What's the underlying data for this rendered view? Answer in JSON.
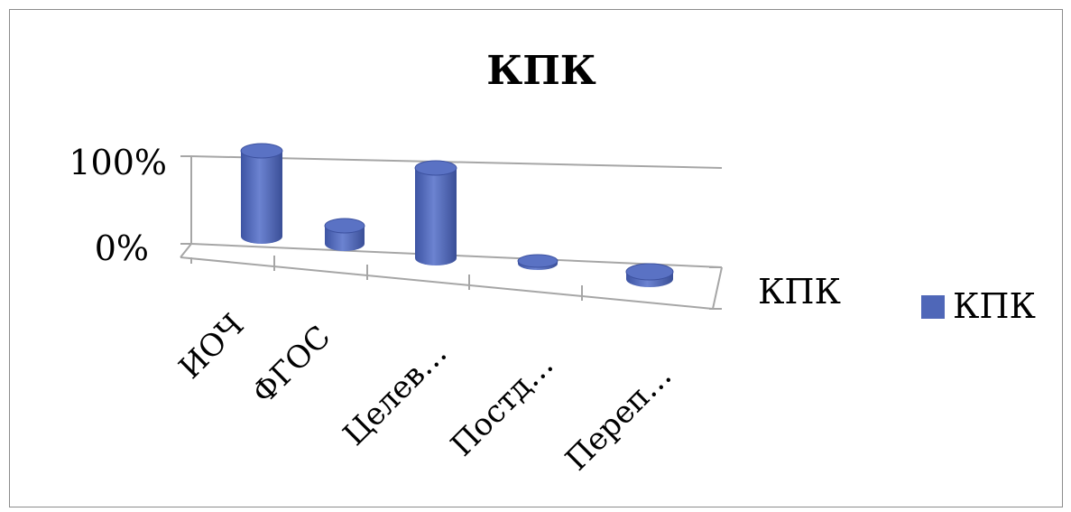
{
  "chart_data": {
    "type": "bar",
    "title": "КПК",
    "categories": [
      "ИОЧ",
      "ФГОС",
      "Целев…",
      "Постд…",
      "Переп…"
    ],
    "series": [
      {
        "name": "КПК",
        "values": [
          95,
          20,
          100,
          3,
          8
        ],
        "color": "#4f67b8"
      }
    ],
    "yticks": [
      "0%",
      "100%"
    ],
    "ylim": [
      0,
      100
    ],
    "depth_label": "КПК",
    "legend": {
      "position": "right",
      "label": "КПК"
    },
    "grid": false
  }
}
